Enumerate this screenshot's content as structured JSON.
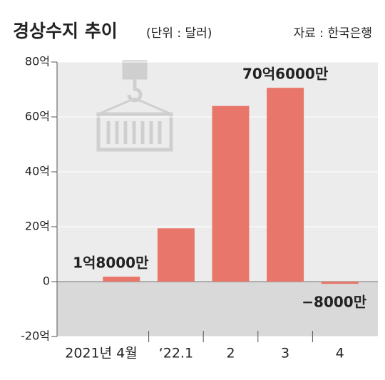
{
  "chart_data": {
    "type": "bar",
    "title": "경상수지 추이",
    "subtitle": "(단위 : 달러)",
    "source": "자료 : 한국은행",
    "categories": [
      "2021년 4월",
      "‘22.1",
      "2",
      "3",
      "4"
    ],
    "values": [
      1.8,
      19.4,
      64,
      70.6,
      -0.8
    ],
    "value_labels": [
      "1억8000만",
      null,
      null,
      "70억6000만",
      "−8000만"
    ],
    "color": "#e8766a",
    "ylim": [
      -20,
      80
    ],
    "yticks": [
      {
        "value": -20,
        "label": "-20억"
      },
      0,
      {
        "value": 20,
        "label": "20억"
      },
      {
        "value": 40,
        "label": "40억"
      },
      {
        "value": 60,
        "label": "60억"
      },
      {
        "value": 80,
        "label": "80억"
      }
    ],
    "grid": true
  }
}
